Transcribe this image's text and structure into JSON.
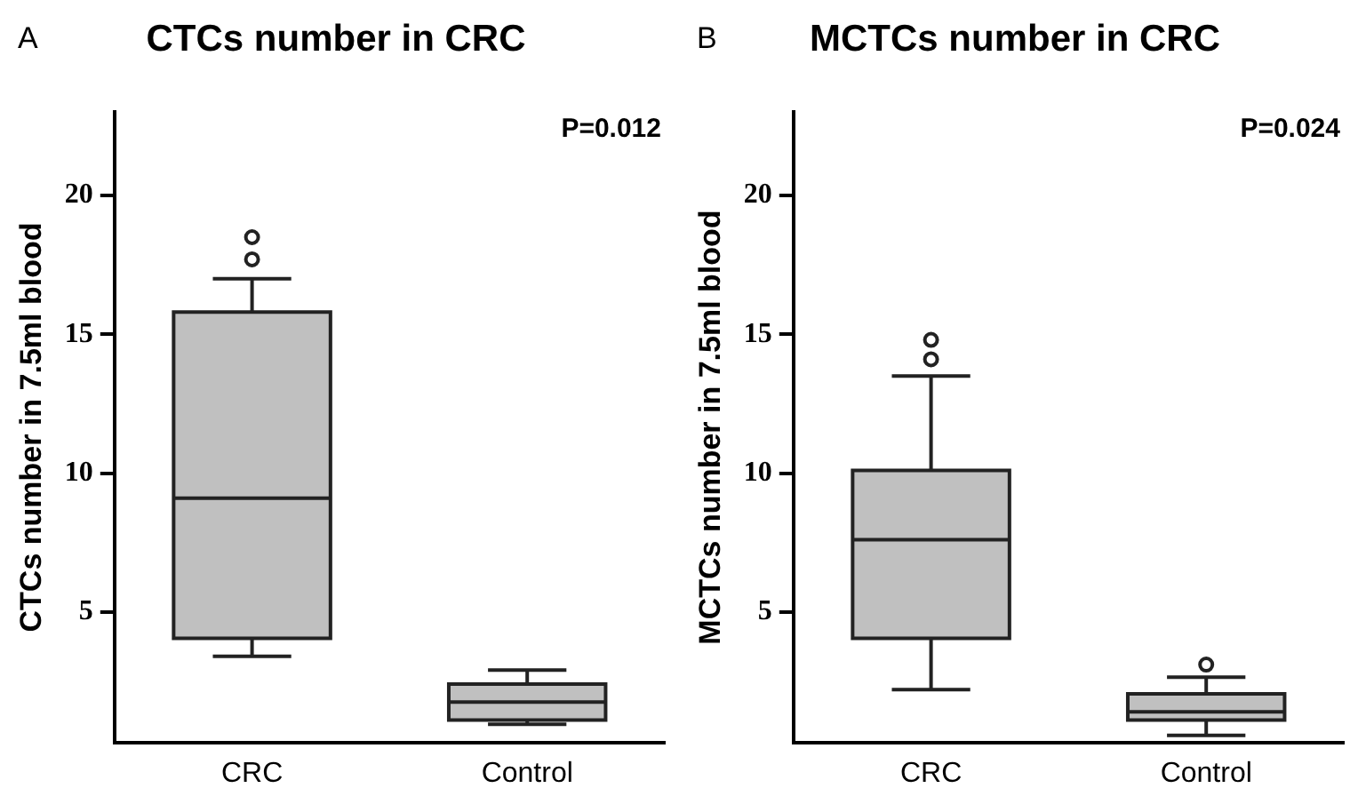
{
  "chart_data": [
    {
      "type": "box",
      "title": "CTCs number in CRC",
      "ylabel": "CTCs number in 7.5ml blood",
      "categories": [
        "CRC",
        "Control"
      ],
      "color": "#c0c0c0",
      "ylim": [
        0.3,
        23
      ],
      "yticks": [
        5,
        10,
        15,
        20
      ],
      "grid": false,
      "legend": false,
      "boxes": [
        {
          "low": 3.4,
          "q1": 4.05,
          "median": 9.1,
          "q3": 15.8,
          "high": 17,
          "outliers": [
            17.7,
            18.5
          ]
        },
        {
          "low": 0.95,
          "q1": 1.1,
          "median": 1.75,
          "q3": 2.4,
          "high": 2.9
        }
      ],
      "annotations": [
        "A",
        "P=0.012"
      ]
    },
    {
      "type": "box",
      "title": "MCTCs number in CRC",
      "ylabel": "MCTCs number in 7.5ml blood",
      "categories": [
        "CRC",
        "Control"
      ],
      "color": "#c0c0c0",
      "ylim": [
        0.3,
        23
      ],
      "yticks": [
        5,
        10,
        15,
        20
      ],
      "grid": false,
      "legend": false,
      "boxes": [
        {
          "low": 2.2,
          "q1": 4.05,
          "median": 7.6,
          "q3": 10.1,
          "high": 13.5,
          "outliers": [
            14.1,
            14.8
          ]
        },
        {
          "low": 0.55,
          "q1": 1.1,
          "median": 1.4,
          "q3": 2.05,
          "high": 2.65,
          "outliers": [
            3.1
          ]
        }
      ],
      "annotations": [
        "B",
        "P=0.024"
      ]
    }
  ]
}
